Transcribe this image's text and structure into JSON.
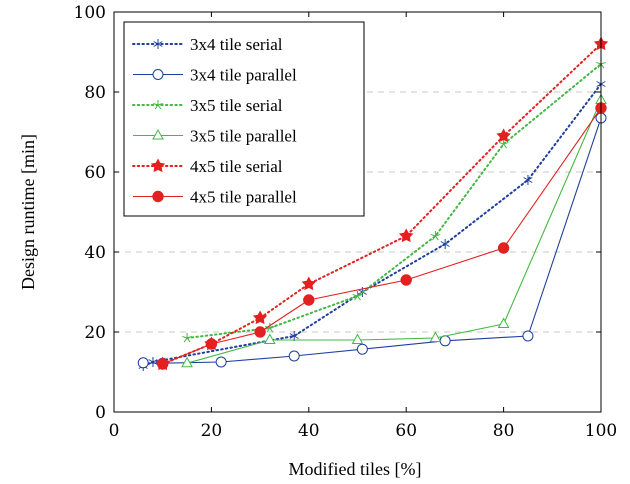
{
  "chart_data": {
    "type": "line",
    "xlabel": "Modified tiles [%]",
    "ylabel": "Design runtime [min]",
    "xlim": [
      0,
      100
    ],
    "ylim": [
      0,
      100
    ],
    "xticks": [
      "0",
      "20",
      "40",
      "60",
      "80",
      "100"
    ],
    "yticks": [
      "0",
      "20",
      "40",
      "60",
      "80",
      "100"
    ],
    "grid": "horizontal-dashed",
    "legend_position": "top-left",
    "series": [
      {
        "name": "3x4 tile serial",
        "color": "#1f3fa0",
        "line_style": "dotted",
        "marker": "asterisk",
        "x": [
          6,
          8,
          37,
          51,
          68,
          85,
          100
        ],
        "y": [
          11.5,
          12.5,
          19,
          30,
          42,
          58,
          82
        ]
      },
      {
        "name": "3x4 tile parallel",
        "color": "#1f3fa0",
        "line_style": "solid",
        "marker": "circle-open",
        "x": [
          6,
          10,
          22,
          37,
          51,
          68,
          85,
          100
        ],
        "y": [
          12.3,
          12.2,
          12.5,
          14,
          15.7,
          17.8,
          19,
          73.5
        ]
      },
      {
        "name": "3x5 tile serial",
        "color": "#44b844",
        "line_style": "dotted",
        "marker": "star",
        "x": [
          15,
          32,
          50,
          66,
          80,
          100
        ],
        "y": [
          18.5,
          21,
          29,
          44,
          67,
          87
        ]
      },
      {
        "name": "3x5 tile parallel",
        "color": "#44b844",
        "line_style": "solid",
        "marker": "triangle-open",
        "x": [
          15,
          32,
          50,
          66,
          80,
          100
        ],
        "y": [
          12.2,
          18,
          18,
          18.5,
          22,
          78
        ]
      },
      {
        "name": "4x5 tile serial",
        "color": "#e32121",
        "line_style": "dotted",
        "marker": "star-filled",
        "x": [
          10,
          20,
          30,
          40,
          60,
          80,
          100
        ],
        "y": [
          12,
          17,
          23.5,
          32,
          44,
          69,
          92
        ]
      },
      {
        "name": "4x5 tile parallel",
        "color": "#e32121",
        "line_style": "solid",
        "marker": "circle-filled",
        "x": [
          10,
          20,
          30,
          40,
          60,
          80,
          100
        ],
        "y": [
          12,
          17,
          20,
          28,
          33,
          41,
          76
        ]
      }
    ]
  }
}
